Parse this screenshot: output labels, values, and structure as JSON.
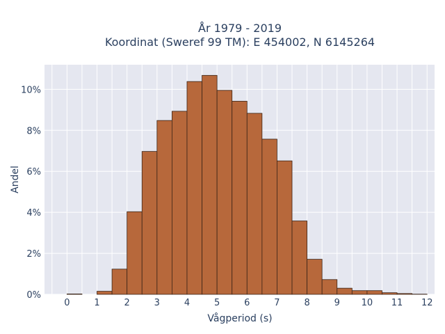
{
  "chart_data": {
    "type": "bar",
    "title_lines": [
      "År 1979 - 2019",
      "Koordinat (Sweref 99 TM): E 454002, N 6145264"
    ],
    "xlabel": "Vågperiod (s)",
    "ylabel": "Andel",
    "xlim": [
      -0.75,
      12.25
    ],
    "ylim": [
      0,
      11.2
    ],
    "x_ticks": [
      0,
      1,
      2,
      3,
      4,
      5,
      6,
      7,
      8,
      9,
      10,
      11,
      12
    ],
    "y_ticks": [
      0,
      2,
      4,
      6,
      8,
      10
    ],
    "y_tick_suffix": "%",
    "bin_width": 0.5,
    "bin_starts": [
      0,
      1,
      1.5,
      2,
      2.5,
      3,
      3.5,
      4,
      4.5,
      5,
      5.5,
      6,
      6.5,
      7,
      7.5,
      8,
      8.5,
      9,
      9.5,
      10,
      10.5,
      11,
      11.5
    ],
    "values": [
      0.02,
      0.15,
      1.23,
      4.03,
      6.97,
      8.48,
      8.93,
      10.38,
      10.68,
      9.95,
      9.42,
      8.83,
      7.57,
      6.51,
      3.58,
      1.71,
      0.72,
      0.3,
      0.18,
      0.18,
      0.08,
      0.04,
      0.01
    ],
    "grid": true,
    "colors": {
      "bar_fill": "#b7683b",
      "bar_stroke": "#3a2418",
      "plot_bg": "#e5e7f0",
      "grid": "#ffffff"
    }
  }
}
